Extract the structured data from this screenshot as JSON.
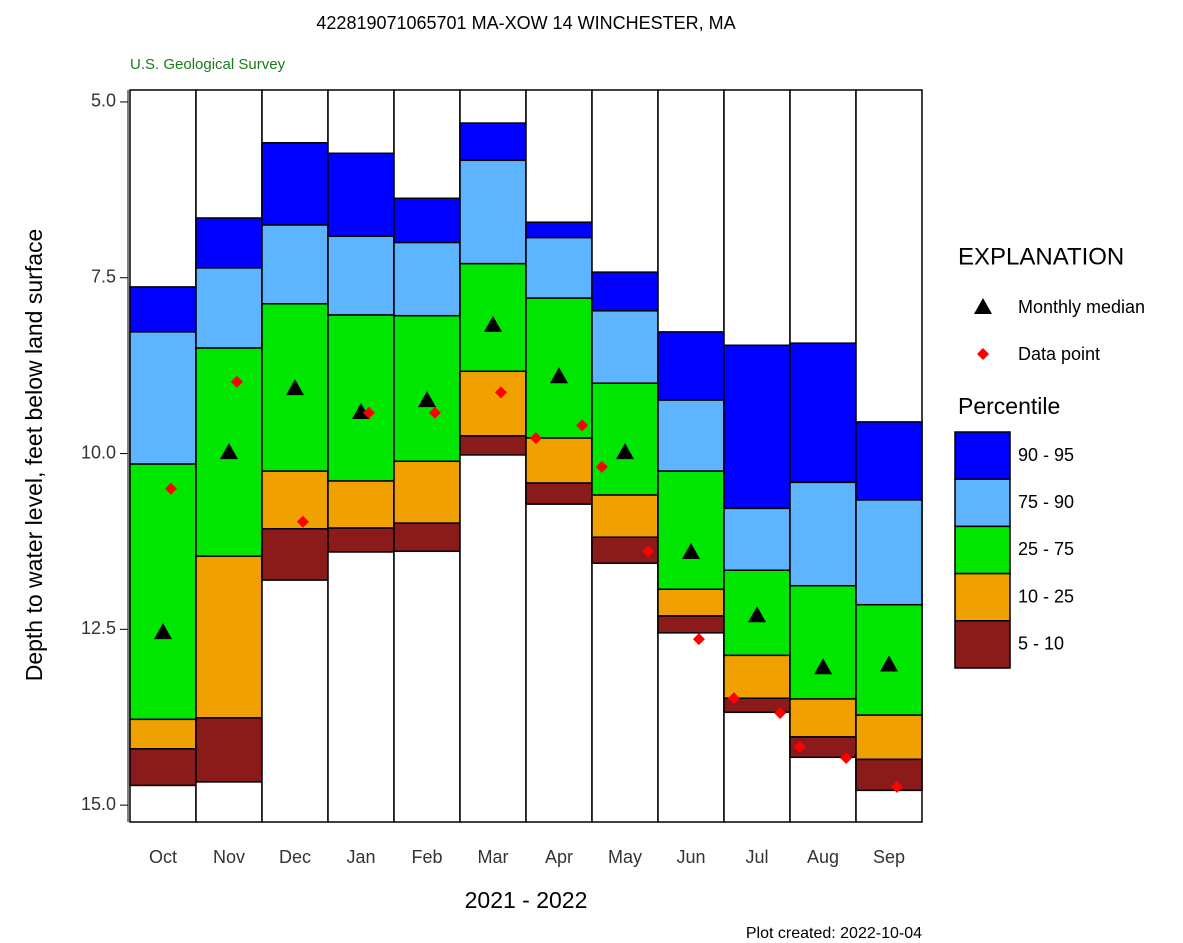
{
  "chart_data": {
    "type": "percentile_bars",
    "title": "422819071065701 MA-XOW   14 WINCHESTER, MA",
    "subtitle": "U.S. Geological Survey",
    "y_label": "Depth to water level, feet below land surface",
    "x_label": "2021 - 2022",
    "note": "Plot created: 2022-10-04",
    "legend_title": "EXPLANATION",
    "percentile_title": "Percentile",
    "categories": [
      "Oct",
      "Nov",
      "Dec",
      "Jan",
      "Feb",
      "Mar",
      "Apr",
      "May",
      "Jun",
      "Jul",
      "Aug",
      "Sep"
    ],
    "ylim": [
      4.83,
      15.24
    ],
    "y_inverted": true,
    "yticks": [
      {
        "value": 5,
        "label": "5.0"
      },
      7.5,
      {
        "value": 10,
        "label": "10.0"
      },
      12.5,
      {
        "value": 15,
        "label": "15.0"
      }
    ],
    "bounds": [
      [
        7.63,
        8.27,
        10.15,
        13.78,
        14.2,
        14.72
      ],
      [
        6.65,
        7.36,
        8.5,
        11.46,
        13.76,
        14.67
      ],
      [
        5.58,
        6.75,
        7.87,
        10.25,
        11.07,
        11.8
      ],
      [
        5.73,
        6.91,
        8.03,
        10.39,
        11.06,
        11.4
      ],
      [
        6.37,
        7.0,
        8.04,
        10.11,
        10.99,
        11.39
      ],
      [
        5.3,
        5.83,
        7.3,
        8.83,
        9.75,
        10.02
      ],
      [
        6.71,
        6.93,
        7.79,
        9.78,
        10.42,
        10.72
      ],
      [
        7.42,
        7.97,
        9.0,
        10.59,
        11.19,
        11.56
      ],
      [
        8.27,
        9.24,
        10.25,
        11.93,
        12.31,
        12.55
      ],
      [
        8.46,
        10.78,
        11.66,
        12.87,
        13.48,
        13.68
      ],
      [
        8.43,
        10.41,
        11.88,
        13.49,
        14.03,
        14.32
      ],
      [
        9.55,
        10.66,
        12.15,
        13.72,
        14.35,
        14.79
      ]
    ],
    "series": [
      {
        "name": "90 - 95",
        "color": "#0000ff"
      },
      {
        "name": "75 - 90",
        "color": "#5fb4ff"
      },
      {
        "name": "25 - 75",
        "color": "#00e600"
      },
      {
        "name": "10 - 25",
        "color": "#f0a000"
      },
      {
        "name": "5 - 10",
        "color": "#8b1a1a"
      }
    ],
    "medians": {
      "name": "Monthly median",
      "color": "#000000",
      "values": [
        12.54,
        9.98,
        9.07,
        9.41,
        9.24,
        8.17,
        8.9,
        9.98,
        11.4,
        12.3,
        13.04,
        13.0
      ]
    },
    "data_points": {
      "name": "Data point",
      "color": "#ff0000",
      "month": [
        "Oct",
        "Nov",
        "Dec",
        "Jan",
        "Feb",
        "Mar",
        "Apr",
        "Apr",
        "May",
        "May",
        "Jun",
        "Jul",
        "Jul",
        "Aug",
        "Aug",
        "Sep"
      ],
      "values": [
        10.5,
        8.98,
        10.97,
        9.42,
        9.42,
        9.13,
        9.78,
        9.6,
        10.19,
        11.39,
        12.64,
        13.48,
        13.69,
        14.17,
        14.33,
        14.74
      ]
    }
  }
}
